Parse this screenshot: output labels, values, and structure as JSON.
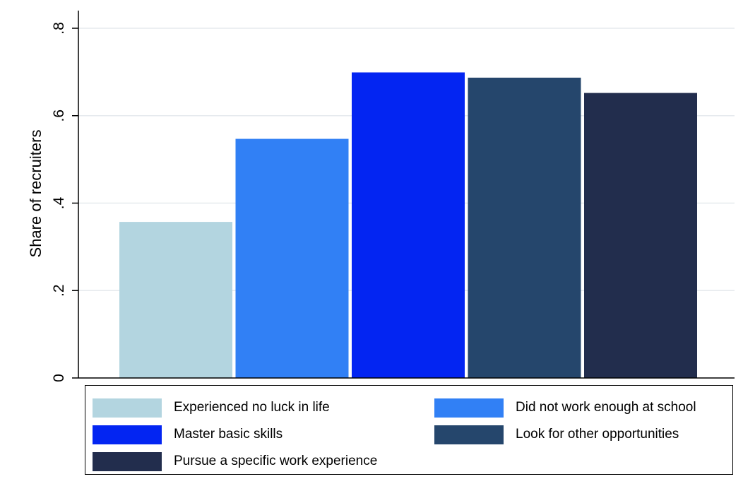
{
  "chart_data": {
    "type": "bar",
    "title": "",
    "xlabel": "",
    "ylabel": "Share of recruiters",
    "ylim": [
      0,
      0.8
    ],
    "yticks": [
      0,
      0.2,
      0.4,
      0.6,
      0.8
    ],
    "ytick_labels": [
      "0",
      ".2",
      ".4",
      ".6",
      ".8"
    ],
    "grid": true,
    "legend_position": "bottom",
    "series": [
      {
        "name": "Experienced no luck in life",
        "value": 0.357,
        "color": "#b3d5e0"
      },
      {
        "name": "Did not work enough at school",
        "value": 0.547,
        "color": "#3180f5"
      },
      {
        "name": "Master basic skills",
        "value": 0.699,
        "color": "#0325f2"
      },
      {
        "name": "Look for other opportunities",
        "value": 0.687,
        "color": "#25466c"
      },
      {
        "name": "Pursue a specific work experience",
        "value": 0.652,
        "color": "#222d4d"
      }
    ]
  }
}
